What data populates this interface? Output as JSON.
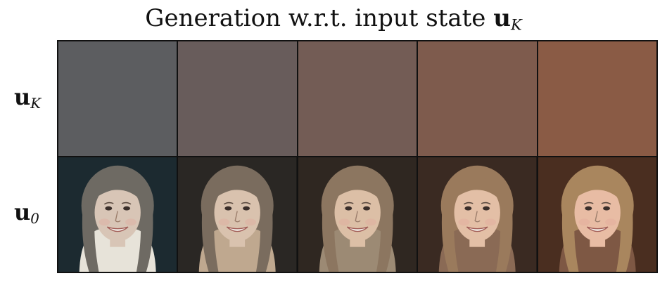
{
  "title": {
    "prefix": "Generation w.r.t. input state ",
    "symbol": "u",
    "subscript": "K"
  },
  "rows": [
    {
      "symbol": "u",
      "subscript": "K"
    },
    {
      "symbol": "u",
      "subscript": "0"
    }
  ],
  "input_state_colors": [
    "#5c5d60",
    "#685c5b",
    "#735c55",
    "#7e5b4d",
    "#8a5b45"
  ],
  "generated_faces": [
    {
      "background": "#1c2a30",
      "hair": "#6e6a63",
      "skin": "#d8c5b6",
      "shirt": "#e7e3d9"
    },
    {
      "background": "#2a2724",
      "hair": "#7a6c5e",
      "skin": "#d9c2ae",
      "shirt": "#bfa88f"
    },
    {
      "background": "#2f2721",
      "hair": "#8c7660",
      "skin": "#dcbfa6",
      "shirt": "#9c8a74"
    },
    {
      "background": "#3a2a22",
      "hair": "#9a7a5c",
      "skin": "#e3bfa6",
      "shirt": "#8a6a55"
    },
    {
      "background": "#4a2e20",
      "hair": "#a9865e",
      "skin": "#e8bca4",
      "shirt": "#7e5844"
    }
  ]
}
